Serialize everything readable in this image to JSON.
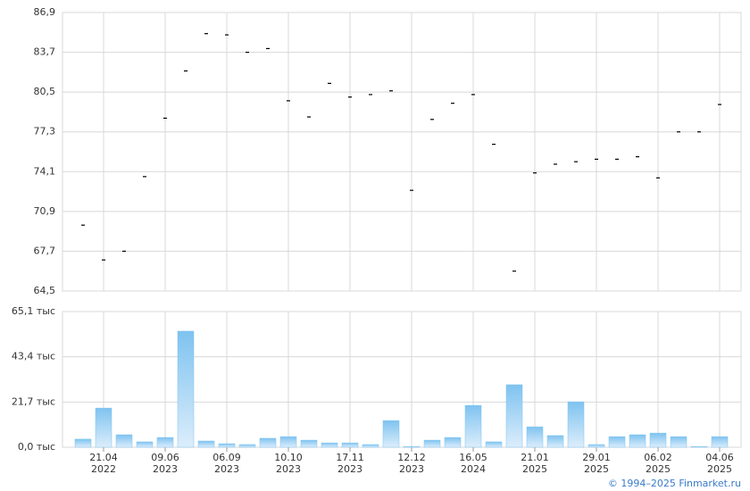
{
  "chart_data": [
    {
      "type": "scatter",
      "categories": [
        null,
        "21.04 2022",
        null,
        null,
        "09.06 2023",
        null,
        null,
        "06.09 2023",
        null,
        null,
        "10.10 2023",
        null,
        null,
        "17.11 2023",
        null,
        null,
        "12.12 2023",
        null,
        null,
        "16.05 2024",
        null,
        null,
        "21.01 2025",
        null,
        null,
        "29.01 2025",
        null,
        null,
        "06.02 2025",
        null,
        null,
        "04.06 2025"
      ],
      "values": [
        69.8,
        67.0,
        67.7,
        73.7,
        78.4,
        82.2,
        85.2,
        85.1,
        83.7,
        84.0,
        79.8,
        78.5,
        81.2,
        80.1,
        80.3,
        80.6,
        72.6,
        78.3,
        79.6,
        80.3,
        76.3,
        66.1,
        74.0,
        74.7,
        74.9,
        75.1,
        75.1,
        75.3,
        73.6,
        77.3,
        77.3,
        79.5
      ],
      "color": "#000000",
      "ylim": [
        64.5,
        86.9
      ],
      "yticks": [
        {
          "value": 64.5,
          "label": "64,5"
        },
        {
          "value": 67.7,
          "label": "67,7"
        },
        {
          "value": 70.9,
          "label": "70,9"
        },
        {
          "value": 74.1,
          "label": "74,1"
        },
        {
          "value": 77.3,
          "label": "77,3"
        },
        {
          "value": 80.5,
          "label": "80,5"
        },
        {
          "value": 83.7,
          "label": "83,7"
        },
        {
          "value": 86.9,
          "label": "86,9"
        }
      ],
      "grid": true
    },
    {
      "type": "bar",
      "values": [
        3.9,
        18.8,
        6.0,
        2.6,
        4.7,
        55.7,
        3.0,
        1.7,
        1.3,
        4.3,
        5.1,
        3.4,
        2.1,
        2.1,
        1.3,
        12.8,
        0.4,
        3.4,
        4.7,
        20.1,
        2.6,
        30.0,
        9.8,
        5.6,
        21.8,
        1.3,
        5.1,
        6.0,
        6.8,
        5.1,
        0.4,
        5.1
      ],
      "color": "#7ec3f0",
      "ylim": [
        0,
        65.1
      ],
      "yticks": [
        {
          "value": 0,
          "label": "0,0 тыс"
        },
        {
          "value": 21.7,
          "label": "21,7 тыс"
        },
        {
          "value": 43.4,
          "label": "43,4 тыс"
        },
        {
          "value": 65.1,
          "label": "65,1 тыс"
        }
      ],
      "grid": true
    }
  ],
  "footer": "© 1994–2025 Finmarket.ru"
}
